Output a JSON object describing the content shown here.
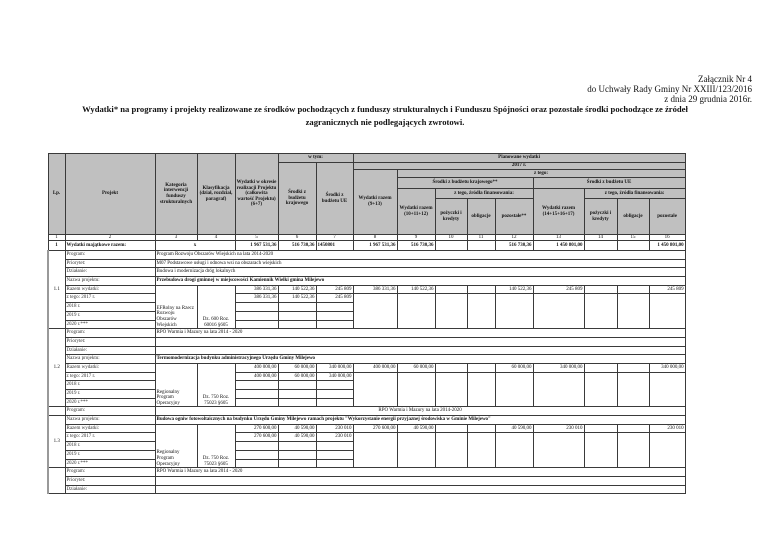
{
  "annex": {
    "line1": "Załącznik Nr 4",
    "line2": "do Uchwały Rady Gminy Nr XXIII/123/2016",
    "line3": "z dnia 29 grudnia 2016r."
  },
  "title": {
    "line1": "Wydatki* na programy i projekty realizowane ze środków pochodzących z funduszy strukturalnych i Funduszu Spójności oraz pozostałe środki pochodzące ze źródeł",
    "line2": "zagranicznych nie podlegających zwrotowi."
  },
  "header": {
    "lp": "Lp.",
    "projekt": "Projekt",
    "kategoria": "Kategoria interwencji funduszy strukturalnych",
    "klasyfikacja": "Klasyfikacja (dział, rozdział, paragraf)",
    "wydatki_okres": "Wydatki w okresie realizacji Projektu (całkowita wartość Projektu) (6+7)",
    "w_tym": "w tym:",
    "srodki_krajowe": "Środki z budżetu krajowego",
    "srodki_ue": "Środki z budżetu UE",
    "planowane": "Planowane wydatki",
    "rok": "2017 r.",
    "wydatki_razem": "Wydatki razem (9+13)",
    "z_tego": "z tego:",
    "kraj_group": "Środki z budżetu krajowego**",
    "ue_group": "Środki z budżetu UE",
    "kraj_razem": "Wydatki razem (10+11+12)",
    "zrodla": "z tego, źródła finansowania:",
    "ue_razem": "Wydatki razem (14+15+16+17)",
    "pozyczki": "pożyczki i kredyty",
    "obligacje": "obligacje",
    "pozostale_kraj": "pozostałe**",
    "pozostale_ue": "pozostałe",
    "numbers": [
      "1",
      "2",
      "3",
      "4",
      "5",
      "6",
      "7",
      "8",
      "9",
      "10",
      "11",
      "12",
      "13",
      "14",
      "15",
      "16"
    ]
  },
  "total": {
    "lp": "1",
    "label": "Wydatki majątkowe razem:",
    "x": "x",
    "values": [
      "1 967 531,36",
      "516 730,36",
      "1450801",
      "1 967 531,36",
      "516 730,36",
      "",
      "",
      "516 730,36",
      "1 450 801,00",
      "",
      "",
      "1 450 801,00"
    ]
  },
  "blocks": [
    {
      "lp": "1.1",
      "info": [
        {
          "label": "Program:",
          "value": "Program Rozwoju Obszarów Wiejskich na lata 2014-2020",
          "style": ""
        },
        {
          "label": "Priorytet:",
          "value": "M07 Podstawowe usługi i odnowa wsi na obszarach wiejskich",
          "style": ""
        },
        {
          "label": "Działanie:",
          "value": "Budowa i modernizacja dróg lokalnych",
          "style": ""
        },
        {
          "label": "Nazwa projektu:",
          "value": "Przebudowa drogi gminnej w miejscowości Kamiennik Wielki gmina Milejewo",
          "style": "b"
        }
      ],
      "finance": {
        "category": "EFRolny na Rzecz Rozwoju Obszarów Wiejskich",
        "classification": "Dz. 600 Roz. 60016 §605",
        "rows": [
          {
            "label": "Razem wydatki:",
            "v": [
              "386 331,36",
              "140 522,36",
              "245 809"
            ]
          },
          {
            "label": "z tego: 2017 r.",
            "v": [
              "386 331,36",
              "140 522,36",
              "245 809"
            ]
          },
          {
            "label": "2018 r.",
            "v": [
              "",
              "",
              ""
            ]
          },
          {
            "label": "2019 r.",
            "v": [
              "",
              "",
              ""
            ]
          },
          {
            "label": "2020 r.***",
            "v": [
              "",
              "",
              ""
            ]
          }
        ],
        "totals": [
          "386 331,36",
          "140 522,36",
          "",
          "",
          "140 522,36",
          "245 809",
          "",
          "",
          "245 809"
        ]
      }
    },
    {
      "lp": "1.2",
      "info": [
        {
          "label": "Program:",
          "value": "RPO Warmia i Mazury na lata 2014 - 2020",
          "style": ""
        },
        {
          "label": "Priorytet:",
          "value": "",
          "style": ""
        },
        {
          "label": "Działanie:",
          "value": "",
          "style": ""
        },
        {
          "label": "Nazwa projektu:",
          "value": "Termomodernizacja budynku administracyjnego Urzędu Gminy Milejewo",
          "style": "b"
        }
      ],
      "finance": {
        "category": "Regionalny Program Operacyjny",
        "classification": "Dz. 750 Roz. 75023 §605",
        "rows": [
          {
            "label": "Razem wydatki:",
            "v": [
              "400 000,00",
              "60 000,00",
              "340 000,00"
            ]
          },
          {
            "label": "z tego: 2017 r.",
            "v": [
              "400 000,00",
              "60 000,00",
              "340 000,00"
            ]
          },
          {
            "label": "2018 r.",
            "v": [
              "",
              "",
              ""
            ]
          },
          {
            "label": "2019 r.",
            "v": [
              "",
              "",
              ""
            ]
          },
          {
            "label": "2020 r.***",
            "v": [
              "",
              "",
              ""
            ]
          }
        ],
        "totals": [
          "400 000,00",
          "60 000,00",
          "",
          "",
          "60 000,00",
          "340 000,00",
          "",
          "",
          "340 000,00"
        ]
      }
    },
    {
      "lp": "",
      "info": [
        {
          "label": "Program:",
          "value": "RPO Warmia i Mazury na lata 2014-2020",
          "style": "c"
        }
      ]
    },
    {
      "lp": "1.3",
      "info": [
        {
          "label": "Nazwa projektu:",
          "value": "Budowa ogniw fotowoltaicznych na budynku Urzędu Gminy Milejewo ramach projektu \"Wykorzystanie energii przyjaznej środowiska w Gminie Milejewo\"",
          "style": "b"
        }
      ],
      "finance": {
        "category": "Regionalny Program Operacyjny",
        "classification": "Dz. 750 Roz. 75023 §605",
        "rows": [
          {
            "label": "Razem wydatki:",
            "v": [
              "270 600,00",
              "40 590,00",
              "230 010"
            ]
          },
          {
            "label": "z tego: 2017 r.",
            "v": [
              "270 600,00",
              "40 590,00",
              "230 010"
            ]
          },
          {
            "label": "2018 r.",
            "v": [
              "",
              "",
              ""
            ]
          },
          {
            "label": "2019 r.",
            "v": [
              "",
              "",
              ""
            ]
          },
          {
            "label": "2020 r.***",
            "v": [
              "",
              "",
              ""
            ]
          }
        ],
        "totals": [
          "270 600,00",
          "40 590,00",
          "",
          "",
          "40 590,00",
          "230 010",
          "",
          "",
          "230 010"
        ]
      }
    },
    {
      "lp": "",
      "info": [
        {
          "label": "Program:",
          "value": "RPO Warmia i Mazury na lata 2014 - 2020",
          "style": ""
        },
        {
          "label": "Priorytet:",
          "value": "",
          "style": ""
        },
        {
          "label": "Działanie:",
          "value": "",
          "style": ""
        }
      ]
    }
  ]
}
